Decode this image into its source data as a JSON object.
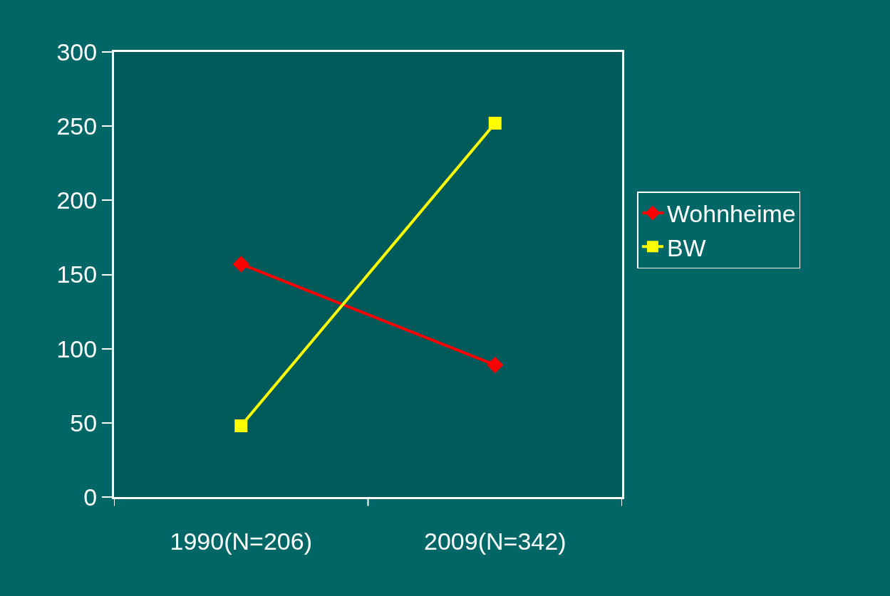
{
  "chart_data": {
    "type": "line",
    "categories": [
      "1990(N=206)",
      "2009(N=342)"
    ],
    "series": [
      {
        "name": "Wohnheime",
        "color": "#ff0000",
        "values": [
          157,
          89
        ],
        "marker": "diamond"
      },
      {
        "name": "BW",
        "color": "#ffff00",
        "values": [
          48,
          252
        ],
        "marker": "square"
      }
    ],
    "ylim": [
      0,
      300
    ],
    "yticks": [
      0,
      50,
      100,
      150,
      200,
      250,
      300
    ],
    "grid": false,
    "legend": "right",
    "line_style": "solid"
  }
}
